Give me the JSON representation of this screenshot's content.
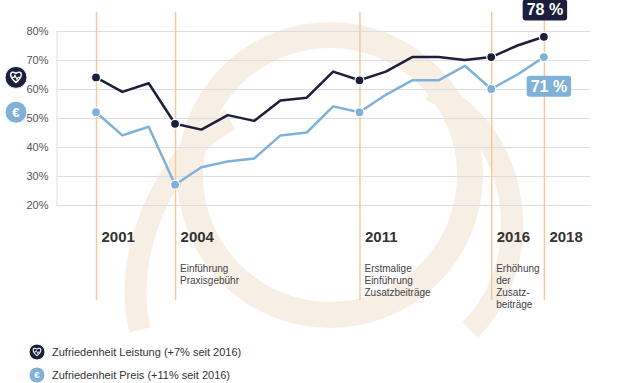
{
  "chart_data": {
    "type": "line",
    "x": [
      2001,
      2002,
      2003,
      2004,
      2005,
      2006,
      2007,
      2008,
      2009,
      2010,
      2011,
      2012,
      2013,
      2014,
      2015,
      2016,
      2017,
      2018
    ],
    "xlim": [
      1999.5,
      2019.75
    ],
    "xticks": [
      2001,
      2004,
      2011,
      2016,
      2018
    ],
    "ylim": [
      20,
      80
    ],
    "yticks": [
      {
        "value": 20,
        "label": "20%"
      },
      {
        "value": 30,
        "label": "30%"
      },
      {
        "value": 40,
        "label": "40%"
      },
      {
        "value": 50,
        "label": "50%"
      },
      {
        "value": 60,
        "label": "60%"
      },
      {
        "value": 70,
        "label": "70%"
      },
      {
        "value": 80,
        "label": "80%"
      }
    ],
    "grid": true,
    "legend": "bottom-left",
    "series": [
      {
        "name": "Zufriedenheit Leistung (+7% seit 2016)",
        "color": "#1b1f3b",
        "marker": "circle",
        "values": [
          64,
          59,
          62,
          48,
          46,
          51,
          49,
          56,
          57,
          66,
          63,
          66,
          71,
          71,
          70,
          71,
          75,
          78
        ],
        "end_label": "78 %"
      },
      {
        "name": "Zufriedenheit Preis (+11% seit 2016)",
        "color": "#7fb1d9",
        "marker": "circle",
        "icon": "€",
        "values": [
          52,
          44,
          47,
          27,
          33,
          35,
          36,
          44,
          45,
          54,
          52,
          58,
          63,
          63,
          68,
          60,
          65,
          71
        ],
        "end_label": "71 %"
      }
    ],
    "annotations": [
      {
        "x": 2004,
        "text": [
          "Einführung",
          "Praxisgebühr"
        ]
      },
      {
        "x": 2011,
        "text": [
          "Erstmalige",
          "Einführung",
          "Zusatzbeiträge"
        ]
      },
      {
        "x": 2016,
        "text": [
          "Erhöhung",
          "der",
          "Zusatz-",
          "beiträge"
        ]
      }
    ]
  }
}
